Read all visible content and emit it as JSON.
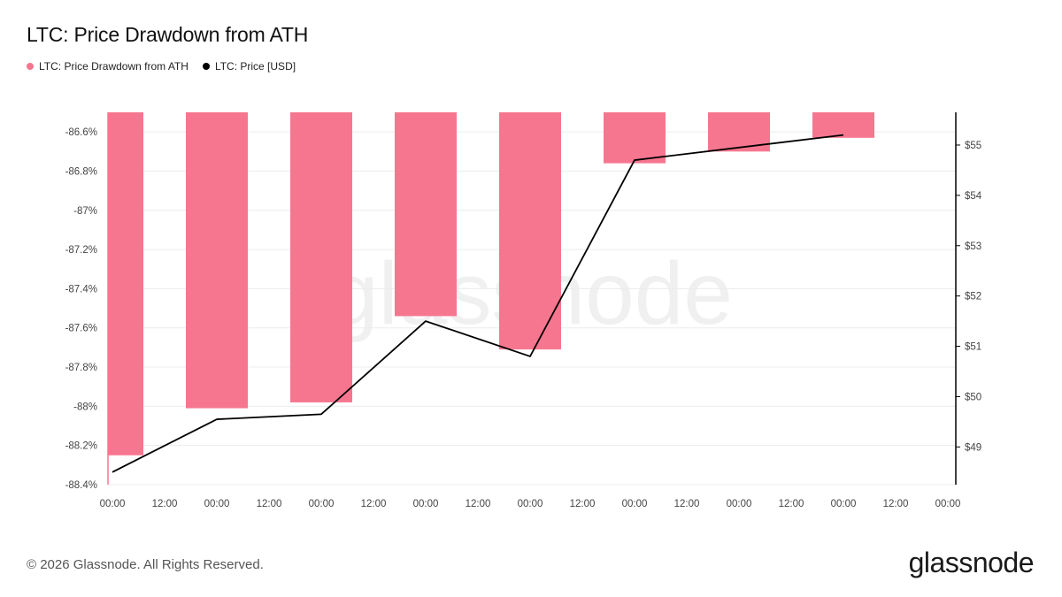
{
  "title": "LTC: Price Drawdown from ATH",
  "legend": [
    {
      "label": "LTC: Price Drawdown from ATH",
      "color": "#f7768f"
    },
    {
      "label": "LTC: Price [USD]",
      "color": "#000000"
    }
  ],
  "watermark": "glassnode",
  "footer": "© 2026 Glassnode. All Rights Reserved.",
  "brand": "glassnode",
  "chart_data": {
    "type": "bar",
    "x_ticks": [
      "00:00",
      "12:00",
      "00:00",
      "12:00",
      "00:00",
      "12:00",
      "00:00",
      "12:00",
      "00:00",
      "12:00",
      "00:00",
      "12:00",
      "00:00",
      "12:00",
      "00:00",
      "12:00",
      "00:00"
    ],
    "y_left": {
      "ticks": [
        "-86.6%",
        "-86.8%",
        "-87%",
        "-87.2%",
        "-87.4%",
        "-87.6%",
        "-87.8%",
        "-88%",
        "-88.2%",
        "-88.4%"
      ],
      "tick_values": [
        -86.6,
        -86.8,
        -87.0,
        -87.2,
        -87.4,
        -87.6,
        -87.8,
        -88.0,
        -88.2,
        -88.4
      ],
      "range": [
        -88.4,
        -86.5
      ]
    },
    "y_right": {
      "ticks": [
        "$55",
        "$54",
        "$53",
        "$52",
        "$51",
        "$50",
        "$49"
      ],
      "tick_values": [
        55,
        54,
        53,
        52,
        51,
        50,
        49
      ],
      "range": [
        48.25,
        55.65
      ]
    },
    "series": [
      {
        "name": "LTC: Price Drawdown from ATH",
        "type": "bar",
        "color": "#f7768f",
        "x": [
          0,
          1,
          2,
          3,
          4,
          5,
          6,
          7
        ],
        "values": [
          -88.25,
          -88.01,
          -87.98,
          -87.54,
          -87.71,
          -86.76,
          -86.7,
          -86.63
        ]
      },
      {
        "name": "LTC: Price [USD]",
        "type": "line",
        "color": "#000000",
        "x": [
          0,
          1,
          2,
          3,
          4,
          5,
          6,
          7
        ],
        "values": [
          48.5,
          49.55,
          49.65,
          51.5,
          50.8,
          54.7,
          54.95,
          55.2
        ]
      }
    ],
    "grid": true
  }
}
